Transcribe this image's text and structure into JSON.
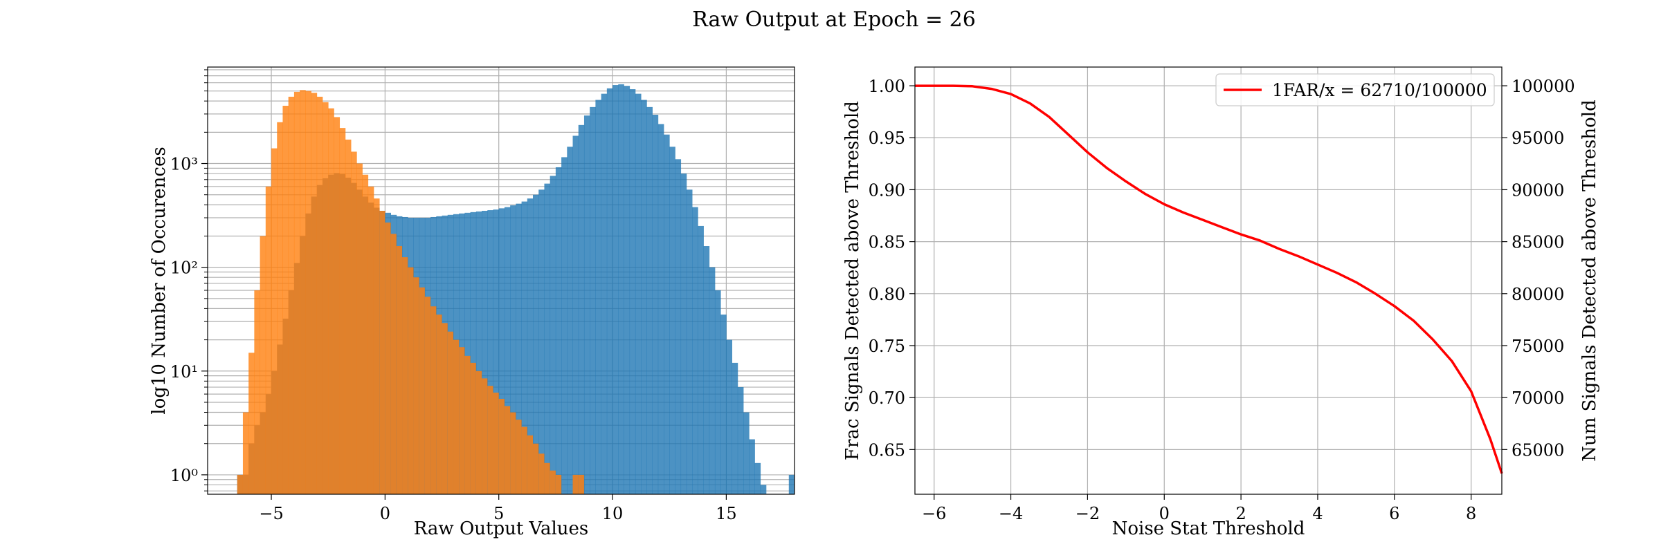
{
  "figure": {
    "title": "Raw Output at Epoch = 26"
  },
  "chart_data": [
    {
      "type": "histogram",
      "xlabel": "Raw Output Values",
      "ylabel": "log10 Number of Occurences",
      "yscale": "log",
      "xlim": [
        -7.8,
        18.0
      ],
      "ylim": [
        0.65,
        8500
      ],
      "xticks": [
        -5,
        0,
        5,
        10,
        15
      ],
      "xtick_labels": [
        "−5",
        "0",
        "5",
        "10",
        "15"
      ],
      "yticks_major": [
        1,
        10,
        100,
        1000
      ],
      "ytick_labels": [
        "10⁰",
        "10¹",
        "10²",
        "10³"
      ],
      "grid": true,
      "colors": {
        "signal": "#1f77b4",
        "noise": "#ff7f0e",
        "overlap": "#e0812c"
      },
      "series": [
        {
          "color": "#1f77b4",
          "bin_start": -6.5,
          "bin_width": 0.25,
          "counts": [
            1,
            1,
            2,
            3,
            4,
            6,
            10,
            18,
            32,
            60,
            110,
            200,
            330,
            480,
            620,
            720,
            780,
            810,
            790,
            730,
            650,
            560,
            480,
            420,
            375,
            350,
            335,
            320,
            310,
            305,
            300,
            300,
            300,
            300,
            305,
            310,
            315,
            320,
            325,
            330,
            335,
            340,
            345,
            350,
            355,
            360,
            370,
            380,
            395,
            410,
            430,
            460,
            500,
            560,
            640,
            760,
            920,
            1150,
            1450,
            1850,
            2350,
            2900,
            3500,
            4100,
            4700,
            5300,
            5700,
            5800,
            5600,
            5200,
            4700,
            4100,
            3500,
            2950,
            2400,
            1900,
            1450,
            1100,
            800,
            560,
            380,
            250,
            160,
            100,
            60,
            35,
            20,
            12,
            7,
            4,
            2.2,
            1.3,
            0.8,
            0,
            0,
            0,
            0,
            1
          ]
        },
        {
          "color": "#ff7f0e",
          "bin_start": -6.5,
          "bin_width": 0.25,
          "counts": [
            1,
            4,
            15,
            60,
            200,
            600,
            1400,
            2500,
            3600,
            4400,
            4900,
            5100,
            5000,
            4800,
            4400,
            3900,
            3400,
            2800,
            2200,
            1700,
            1300,
            1000,
            780,
            600,
            460,
            350,
            270,
            210,
            160,
            125,
            100,
            80,
            64,
            52,
            42,
            35,
            29,
            24,
            20,
            17,
            14,
            12,
            10,
            8.5,
            7.2,
            6.2,
            5.4,
            4.6,
            4.0,
            3.4,
            2.9,
            2.4,
            2.0,
            1.6,
            1.3,
            1.1,
            1.0,
            0,
            0,
            1,
            1
          ]
        }
      ]
    },
    {
      "type": "line",
      "xlabel": "Noise Stat Threshold",
      "ylabel": "Frac Signals Detected above Threshold",
      "ylabel_right": "Num Signals Detected above Threshold",
      "xlim": [
        -6.5,
        8.8
      ],
      "ylim": [
        0.607,
        1.018
      ],
      "xticks": [
        -6,
        -4,
        -2,
        0,
        2,
        4,
        6,
        8
      ],
      "xtick_labels": [
        "−6",
        "−4",
        "−2",
        "0",
        "2",
        "4",
        "6",
        "8"
      ],
      "yticks": [
        0.65,
        0.7,
        0.75,
        0.8,
        0.85,
        0.9,
        0.95,
        1.0
      ],
      "ytick_labels": [
        "0.65",
        "0.70",
        "0.75",
        "0.80",
        "0.85",
        "0.90",
        "0.95",
        "1.00"
      ],
      "yticks_right": [
        65000,
        70000,
        75000,
        80000,
        85000,
        90000,
        95000,
        100000
      ],
      "ytick_labels_right": [
        "65000",
        "70000",
        "75000",
        "80000",
        "85000",
        "90000",
        "95000",
        "100000"
      ],
      "legend_position": "top-right",
      "grid": true,
      "series": [
        {
          "name": "1FAR/x = 62710/100000",
          "color": "#ff0000",
          "x": [
            -6.5,
            -6,
            -5.5,
            -5,
            -4.5,
            -4,
            -3.5,
            -3,
            -2.5,
            -2,
            -1.5,
            -1,
            -0.5,
            0,
            0.5,
            1,
            1.5,
            2,
            2.5,
            3,
            3.5,
            4,
            4.5,
            5,
            5.5,
            6,
            6.5,
            7,
            7.5,
            8,
            8.5,
            8.8
          ],
          "y": [
            1.0,
            1.0,
            1.0,
            0.9995,
            0.997,
            0.992,
            0.983,
            0.97,
            0.953,
            0.936,
            0.921,
            0.908,
            0.896,
            0.886,
            0.878,
            0.871,
            0.864,
            0.857,
            0.851,
            0.843,
            0.836,
            0.828,
            0.82,
            0.811,
            0.8,
            0.788,
            0.774,
            0.756,
            0.735,
            0.706,
            0.66,
            0.627
          ]
        }
      ]
    }
  ]
}
